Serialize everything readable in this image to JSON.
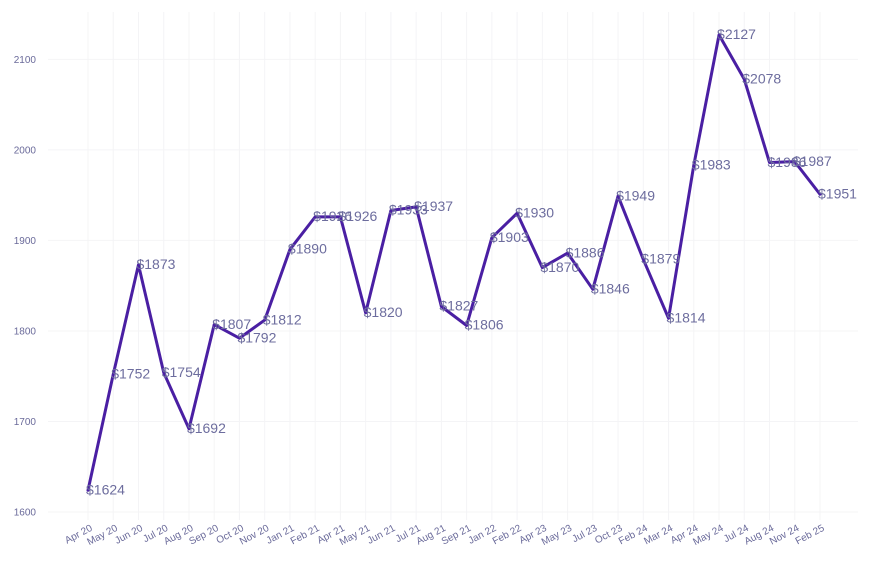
{
  "chart_data": {
    "type": "line",
    "title": "",
    "xlabel": "",
    "ylabel": "",
    "ylim": [
      1600,
      2150
    ],
    "yticks": [
      1600,
      1700,
      1800,
      1900,
      2000,
      2100
    ],
    "grid": true,
    "legend": "none",
    "line_color": "#4a1fa3",
    "label_color": "#6d6d9e",
    "categories": [
      "Apr 20",
      "May 20",
      "Jun 20",
      "Jul 20",
      "Aug 20",
      "Sep 20",
      "Oct 20",
      "Nov 20",
      "Jan 21",
      "Feb 21",
      "Apr 21",
      "May 21",
      "Jun 21",
      "Jul 21",
      "Aug 21",
      "Sep 21",
      "Jan 22",
      "Feb 22",
      "Apr 23",
      "May 23",
      "Jul 23",
      "Oct 23",
      "Feb 24",
      "Mar 24",
      "Apr 24",
      "May 24",
      "Jul 24",
      "Aug 24",
      "Nov 24",
      "Feb 25"
    ],
    "series": [
      {
        "values": [
          1624,
          1752,
          1873,
          1754,
          1692,
          1807,
          1792,
          1812,
          1890,
          1926,
          1926,
          1820,
          1933,
          1937,
          1827,
          1806,
          1903,
          1930,
          1870,
          1886,
          1846,
          1949,
          1879,
          1814,
          1983,
          2127,
          2078,
          1986,
          1987,
          1951
        ],
        "labels": [
          "$1624",
          "$1752",
          "$1873",
          "$1754",
          "$1692",
          "$1807",
          "$1792",
          "$1812",
          "$1890",
          "$1926",
          "$1926",
          "$1820",
          "$1933",
          "$1937",
          "$1827",
          "$1806",
          "$1903",
          "$1930",
          "$1870",
          "$1886",
          "$1846",
          "$1949",
          "$1879",
          "$1814",
          "$1983",
          "$2127",
          "$2078",
          "$1986",
          "$1987",
          "$1951"
        ]
      }
    ]
  }
}
